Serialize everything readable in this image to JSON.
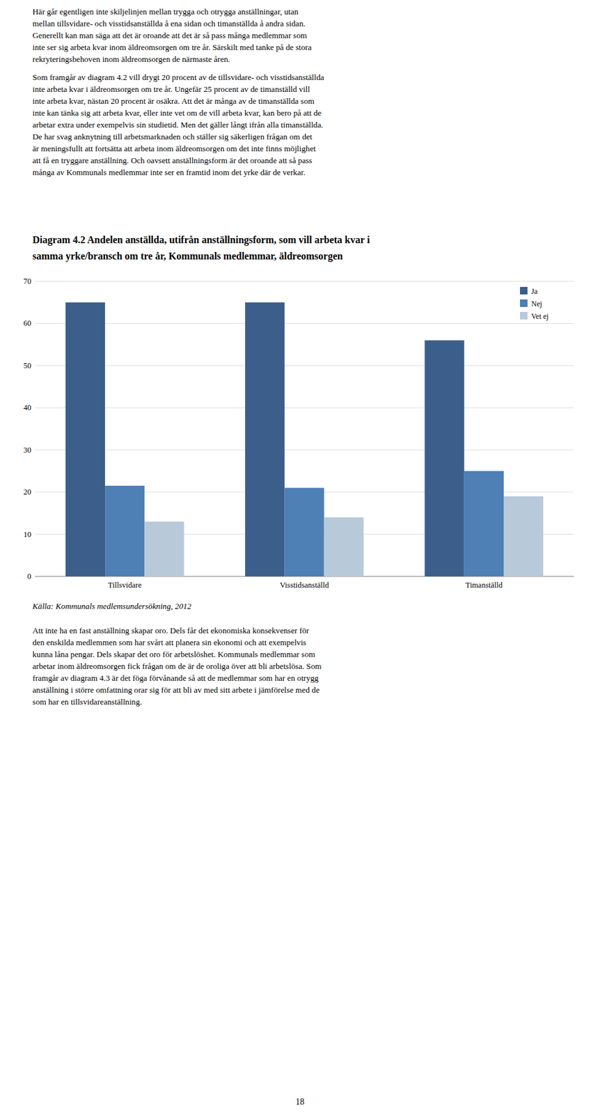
{
  "chart_data": {
    "type": "bar",
    "title": "Diagram 4.2 Andelen anställda, utifrån anställningsform, som vill arbeta kvar i\nsamma yrke/bransch om tre år, Kommunals medlemmar, äldreomsorgen",
    "categories": [
      "Tillsvidare",
      "Visstidsanställd",
      "Timanställd"
    ],
    "series": [
      {
        "name": "Ja",
        "color": "#3b5f8a",
        "values": [
          65,
          65,
          56
        ]
      },
      {
        "name": "Nej",
        "color": "#4e7fb5",
        "values": [
          21.5,
          21,
          25
        ]
      },
      {
        "name": "Vet ej",
        "color": "#b8c9d9",
        "values": [
          13,
          14,
          19
        ]
      }
    ],
    "ylim": [
      0,
      70
    ],
    "yticks": [
      0,
      10,
      20,
      30,
      40,
      50,
      60,
      70
    ],
    "grid": true,
    "legend": "upper-right"
  },
  "page_text": {
    "paragraphs_before": [
      [
        "Här går egentligen inte skiljelinjen mellan trygga och otrygga anställningar, utan",
        "mellan tillsvidare- och visstidsanställda å ena sidan och timanställda å andra sidan.",
        "Generellt kan man säga att det är oroande att det är så pass många medlemmar som",
        "inte ser sig arbeta kvar inom äldreomsorgen om tre år. Särskilt med tanke på de stora",
        "rekryteringsbehoven inom äldreomsorgen de närmaste åren."
      ],
      [
        "Som framgår av diagram 4.2 vill drygt 20 procent av de tillsvidare- och visstidsanställda",
        "inte arbeta kvar i äldreomsorgen om tre år. Ungefär 25 procent av de timanställd vill",
        "inte arbeta kvar, nästan 20 procent är osäkra. Att det är många av de timanställda som",
        "inte kan tänka sig att arbeta kvar, eller inte vet om de vill arbeta kvar, kan bero på att de",
        "arbetar extra under exempelvis sin studietid. Men det gäller långt ifrån alla timanställda.",
        "De har svag anknytning till arbetsmarknaden och ställer sig säkerligen frågan om det",
        "är meningsfullt att fortsätta att arbeta inom äldreomsorgen om det inte finns möjlighet",
        "att få en tryggare anställning. Och oavsett anställningsform är det oroande att så pass",
        "många av Kommunals medlemmar inte ser en framtid inom det yrke där de verkar."
      ]
    ],
    "source": "Källa: Kommunals medlemsundersökning, 2012",
    "paragraphs_after": [
      [
        "Att inte ha en fast anställning skapar oro. Dels får det ekonomiska konsekvenser för",
        "den enskilda medlemmen som har svårt att planera sin ekonomi och att exempelvis",
        "kunna låna pengar. Dels skapar det oro för arbetslöshet. Kommunals medlemmar som",
        "arbetar inom äldreomsorgen fick frågan om de är de oroliga över att bli arbetslösa. Som",
        "framgår av diagram 4.3 är det föga förvånande så att de medlemmar som har en otrygg",
        "anställning i större omfattning orar sig för att bli av med sitt arbete i jämförelse med de",
        "som har en tillsvidareanställning."
      ]
    ],
    "page_number": "18"
  }
}
